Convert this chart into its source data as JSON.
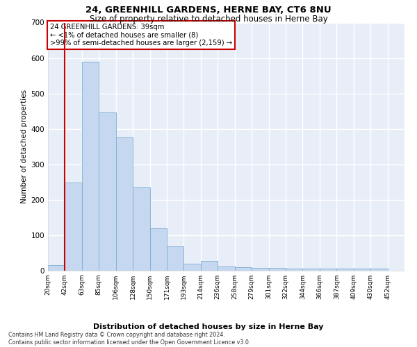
{
  "title": "24, GREENHILL GARDENS, HERNE BAY, CT6 8NU",
  "subtitle": "Size of property relative to detached houses in Herne Bay",
  "xlabel": "Distribution of detached houses by size in Herne Bay",
  "ylabel": "Number of detached properties",
  "bar_color": "#c5d8f0",
  "bar_edge_color": "#7aadd4",
  "bg_color": "#e8eef8",
  "grid_color": "#ffffff",
  "categories": [
    "20sqm",
    "42sqm",
    "63sqm",
    "85sqm",
    "106sqm",
    "128sqm",
    "150sqm",
    "171sqm",
    "193sqm",
    "214sqm",
    "236sqm",
    "258sqm",
    "279sqm",
    "301sqm",
    "322sqm",
    "344sqm",
    "366sqm",
    "387sqm",
    "409sqm",
    "430sqm",
    "452sqm"
  ],
  "bar_values": [
    15,
    248,
    590,
    447,
    375,
    235,
    120,
    68,
    20,
    28,
    11,
    10,
    8,
    7,
    5,
    5,
    5,
    5,
    5,
    5,
    0
  ],
  "ylim": [
    0,
    700
  ],
  "yticks": [
    0,
    100,
    200,
    300,
    400,
    500,
    600,
    700
  ],
  "annotation_text": "24 GREENHILL GARDENS: 39sqm\n← <1% of detached houses are smaller (8)\n>99% of semi-detached houses are larger (2,159) →",
  "annotation_box_color": "#ffffff",
  "annotation_border_color": "#cc0000",
  "vline_pos": 0,
  "footer": "Contains HM Land Registry data © Crown copyright and database right 2024.\nContains public sector information licensed under the Open Government Licence v3.0."
}
